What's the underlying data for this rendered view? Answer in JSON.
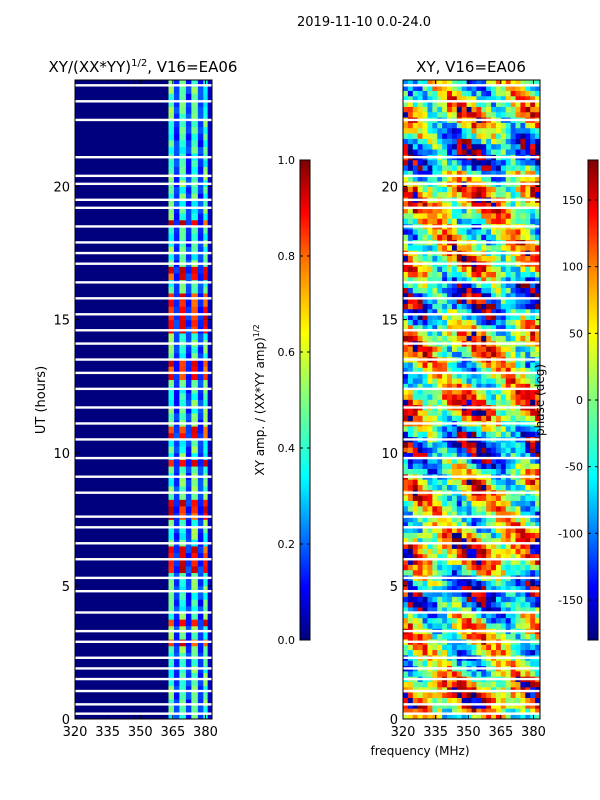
{
  "suptitle": "2019-11-10 0.0-24.0",
  "xlabel_shared": "frequency (MHz)",
  "colors": {
    "jet": [
      "#00007f",
      "#0000ff",
      "#007fff",
      "#00ffff",
      "#7fff7f",
      "#ffff00",
      "#ff7f00",
      "#ff0000",
      "#7f0000"
    ]
  },
  "chart_data": [
    {
      "type": "heatmap",
      "title_main": "XY/(XX*YY)",
      "title_exp": "1/2",
      "title_suffix": ", V16=EA06",
      "xlabel": "",
      "ylabel": "UT (hours)",
      "xlim": [
        320,
        383
      ],
      "ylim": [
        0,
        24
      ],
      "xticks": [
        320,
        335,
        350,
        365,
        380
      ],
      "yticks": [
        0,
        5,
        10,
        15,
        20
      ],
      "colorbar": {
        "label_main": "XY amp. / (XX*YY amp)",
        "label_exp": "1/2",
        "range": [
          0.0,
          1.0
        ],
        "ticks": [
          "0.0",
          "0.2",
          "0.4",
          "0.6",
          "0.8",
          "1.0"
        ]
      },
      "gaps_hours": [
        0.2,
        0.55,
        1.05,
        1.5,
        1.9,
        2.3,
        2.9,
        3.3,
        4.0,
        4.8,
        5.3,
        6.0,
        6.6,
        7.2,
        7.6,
        8.5,
        9.1,
        9.8,
        10.5,
        11.1,
        11.7,
        12.4,
        13.0,
        13.5,
        14.1,
        14.6,
        15.2,
        15.8,
        16.4,
        17.1,
        17.5,
        17.9,
        18.5,
        19.2,
        19.5,
        20.1,
        20.4,
        21.1,
        22.5,
        23.2,
        23.8
      ],
      "bright_rows_hours": [
        2.9,
        3.6,
        5.8,
        6.3,
        7.6,
        8.0,
        9.6,
        10.7,
        13.0,
        13.4,
        14.7,
        15.1,
        15.5,
        15.9,
        16.7,
        18.6
      ]
    },
    {
      "type": "heatmap",
      "title_main": "XY, V16=EA06",
      "xlabel": "",
      "ylabel": "",
      "xlim": [
        320,
        383
      ],
      "ylim": [
        0,
        24
      ],
      "xticks": [
        320,
        335,
        350,
        365,
        380
      ],
      "yticks": [
        0,
        5,
        10,
        15,
        20
      ],
      "colorbar": {
        "label_main": "phase (deg)",
        "range": [
          -180,
          180
        ],
        "ticks": [
          "-150",
          "-100",
          "-50",
          "0",
          "50",
          "100",
          "150"
        ]
      }
    }
  ]
}
